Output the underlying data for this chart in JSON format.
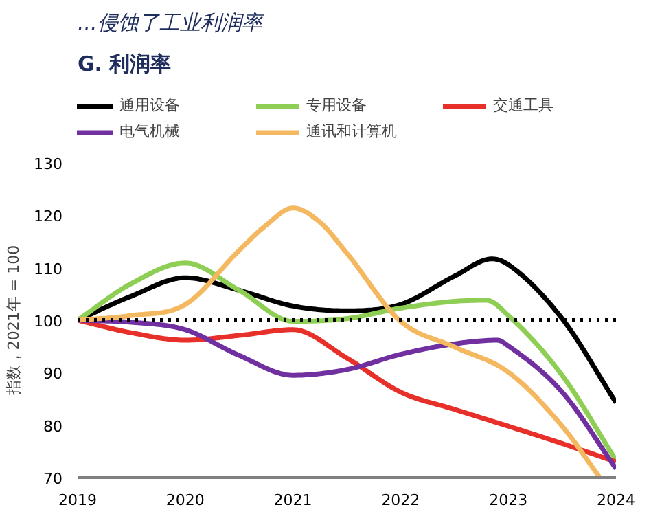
{
  "chart_data": {
    "type": "line",
    "title": "...侵蚀了工业利润率",
    "subtitle": "G. 利润率",
    "ylabel": "指数，2021年 = 100",
    "xlim": [
      2019,
      2024
    ],
    "xticks": [
      2019,
      2020,
      2021,
      2022,
      2023,
      2024
    ],
    "ylim": [
      70,
      130
    ],
    "yticks": [
      70,
      80,
      90,
      100,
      110,
      120,
      130
    ],
    "grid": false,
    "legend": "top",
    "line_style": "solid",
    "marker": "none",
    "ref_lines": [
      {
        "axis": "y",
        "value": 100,
        "label": null,
        "color": "#000000",
        "line_style": "dotted"
      }
    ],
    "series": [
      {
        "name": "通用设备",
        "color": "#000000",
        "x": [
          2019,
          2019.5,
          2020,
          2020.5,
          2021,
          2021.5,
          2022,
          2022.5,
          2022.85,
          2023,
          2023.5,
          2024
        ],
        "values": [
          100,
          104.6,
          108.1,
          105.7,
          102.7,
          101.8,
          103,
          108.4,
          111.7,
          110.6,
          100.3,
          84.3
        ]
      },
      {
        "name": "专用设备",
        "color": "#8fce55",
        "x": [
          2019,
          2019.5,
          2020,
          2020.5,
          2021,
          2021.5,
          2022,
          2022.5,
          2022.8,
          2023,
          2023.5,
          2024
        ],
        "values": [
          100,
          107,
          110.9,
          105.7,
          99.8,
          100.3,
          102.3,
          103.6,
          103.8,
          100.9,
          89.5,
          73.3
        ]
      },
      {
        "name": "交通工具",
        "color": "#e8302a",
        "x": [
          2019,
          2019.5,
          2020,
          2020.5,
          2021,
          2021.5,
          2022,
          2022.5,
          2023,
          2023.5,
          2024
        ],
        "values": [
          100,
          97.6,
          96.2,
          97.1,
          98.2,
          92.8,
          86.3,
          83,
          79.8,
          76.5,
          73
        ]
      },
      {
        "name": "电气机械",
        "color": "#7030a0",
        "x": [
          2019,
          2019.5,
          2020,
          2020.5,
          2021,
          2021.5,
          2022,
          2022.5,
          2022.9,
          2023,
          2023.5,
          2024
        ],
        "values": [
          100,
          99.6,
          98.2,
          93.3,
          89.5,
          90.6,
          93.5,
          95.5,
          96.2,
          95.1,
          86.3,
          71.7
        ]
      },
      {
        "name": "通讯和计算机",
        "color": "#f4b860",
        "x": [
          2019,
          2019.5,
          2020,
          2020.5,
          2020.75,
          2021,
          2021.25,
          2021.5,
          2022,
          2022.5,
          2023,
          2023.5,
          2023.85
        ],
        "values": [
          100,
          100.9,
          103,
          113.3,
          118.1,
          121.4,
          118.7,
          112.8,
          99.8,
          94.9,
          90.1,
          79.8,
          70
        ]
      }
    ]
  }
}
